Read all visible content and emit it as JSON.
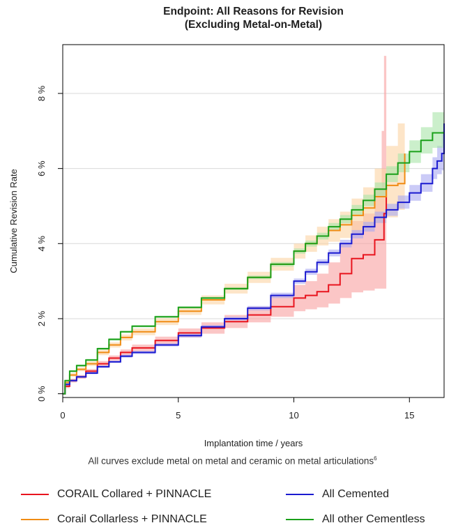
{
  "chart_data": {
    "type": "line",
    "title": "Endpoint: All Reasons for Revision",
    "subtitle": "(Excluding Metal-on-Metal)",
    "xlabel": "Implantation time / years",
    "ylabel": "Cumulative Revision Rate",
    "xlim": [
      0,
      16.5
    ],
    "ylim": [
      -0.1,
      9.3
    ],
    "x_ticks": [
      0,
      5,
      10,
      15
    ],
    "y_ticks": [
      0,
      2,
      4,
      6,
      8
    ],
    "y_tick_labels": [
      "0 %",
      "2 %",
      "4 %",
      "6 %",
      "8 %"
    ],
    "grid": "horizontal",
    "legend_placement": "bottom",
    "note": "All curves exclude metal on metal and ceramic on metal articulations",
    "note_superscript": "6",
    "series": [
      {
        "name": "CORAIL Collared + PINNACLE",
        "color": "#e8141e",
        "band_color": "#f8a0a0",
        "x": [
          0,
          0.1,
          0.3,
          0.6,
          1,
          1.5,
          2,
          2.5,
          3,
          4,
          5,
          6,
          7,
          8,
          9,
          10,
          10.5,
          11,
          11.5,
          12,
          12.5,
          13,
          13.5,
          13.8,
          13.9,
          14.0
        ],
        "y": [
          0,
          0.2,
          0.35,
          0.45,
          0.6,
          0.8,
          0.95,
          1.1,
          1.22,
          1.42,
          1.62,
          1.75,
          1.92,
          2.1,
          2.32,
          2.55,
          2.62,
          2.72,
          2.9,
          3.2,
          3.6,
          3.7,
          4.1,
          4.1,
          4.8,
          5.5
        ],
        "lower": [
          0,
          0.15,
          0.3,
          0.4,
          0.55,
          0.73,
          0.88,
          1.02,
          1.13,
          1.32,
          1.5,
          1.6,
          1.75,
          1.9,
          2.05,
          2.2,
          2.25,
          2.3,
          2.4,
          2.55,
          2.7,
          2.75,
          2.8,
          2.8,
          2.8,
          2.8
        ],
        "upper": [
          0,
          0.25,
          0.4,
          0.5,
          0.66,
          0.87,
          1.02,
          1.18,
          1.31,
          1.52,
          1.74,
          1.9,
          2.1,
          2.32,
          2.6,
          2.9,
          3.0,
          3.2,
          3.5,
          4.0,
          4.6,
          4.8,
          5.5,
          7.0,
          9.0,
          9.0
        ]
      },
      {
        "name": "Corail Collarless + PINNACLE",
        "color": "#f08c14",
        "band_color": "#fbd3a3",
        "x": [
          0,
          0.1,
          0.3,
          0.6,
          1,
          1.5,
          2,
          2.5,
          3,
          4,
          5,
          6,
          7,
          8,
          9,
          10,
          10.5,
          11,
          11.5,
          12,
          12.5,
          13,
          13.5,
          14,
          14.5,
          14.8
        ],
        "y": [
          0,
          0.3,
          0.5,
          0.65,
          0.8,
          1.1,
          1.3,
          1.5,
          1.65,
          1.92,
          2.2,
          2.5,
          2.8,
          3.1,
          3.45,
          3.8,
          4.0,
          4.2,
          4.35,
          4.5,
          4.75,
          4.95,
          5.25,
          5.55,
          5.6,
          6.4
        ],
        "lower": [
          0,
          0.26,
          0.45,
          0.6,
          0.74,
          1.03,
          1.23,
          1.42,
          1.56,
          1.83,
          2.1,
          2.38,
          2.67,
          2.95,
          3.28,
          3.6,
          3.78,
          3.95,
          4.05,
          4.15,
          4.3,
          4.4,
          4.55,
          4.7,
          4.9,
          5.2
        ],
        "upper": [
          0,
          0.34,
          0.55,
          0.7,
          0.86,
          1.17,
          1.37,
          1.58,
          1.74,
          2.01,
          2.3,
          2.62,
          2.93,
          3.25,
          3.62,
          4.0,
          4.22,
          4.45,
          4.65,
          4.85,
          5.2,
          5.5,
          6.0,
          6.6,
          7.2,
          9.1
        ]
      },
      {
        "name": "All Cemented",
        "color": "#1a1ad0",
        "band_color": "#a8a8f2",
        "x": [
          0,
          0.1,
          0.3,
          0.6,
          1,
          1.5,
          2,
          2.5,
          3,
          4,
          5,
          6,
          7,
          8,
          9,
          10,
          10.5,
          11,
          11.5,
          12,
          12.5,
          13,
          13.5,
          14,
          14.5,
          15,
          15.5,
          16,
          16.2,
          16.4,
          16.5
        ],
        "y": [
          0,
          0.25,
          0.35,
          0.45,
          0.55,
          0.72,
          0.85,
          1.0,
          1.1,
          1.3,
          1.55,
          1.78,
          2.0,
          2.28,
          2.62,
          3.0,
          3.25,
          3.5,
          3.75,
          4.0,
          4.25,
          4.45,
          4.7,
          4.9,
          5.1,
          5.35,
          5.6,
          6.0,
          6.2,
          6.4,
          7.2
        ],
        "lower": [
          0,
          0.22,
          0.32,
          0.42,
          0.52,
          0.69,
          0.82,
          0.96,
          1.06,
          1.26,
          1.5,
          1.73,
          1.95,
          2.22,
          2.55,
          2.93,
          3.17,
          3.42,
          3.66,
          3.9,
          4.14,
          4.32,
          4.55,
          4.74,
          4.93,
          5.14,
          5.38,
          5.72,
          5.85,
          5.95,
          6.0
        ],
        "upper": [
          0,
          0.28,
          0.38,
          0.48,
          0.58,
          0.75,
          0.88,
          1.04,
          1.14,
          1.34,
          1.6,
          1.83,
          2.05,
          2.34,
          2.69,
          3.07,
          3.33,
          3.58,
          3.84,
          4.1,
          4.36,
          4.58,
          4.85,
          5.06,
          5.28,
          5.56,
          5.85,
          6.3,
          6.6,
          7.0,
          9.0
        ]
      },
      {
        "name": "All other Cementless",
        "color": "#1aa01a",
        "band_color": "#a8e4a8",
        "x": [
          0,
          0.1,
          0.3,
          0.6,
          1,
          1.5,
          2,
          2.5,
          3,
          4,
          5,
          6,
          7,
          8,
          9,
          10,
          10.5,
          11,
          11.5,
          12,
          12.5,
          13,
          13.5,
          14,
          14.5,
          15,
          15.5,
          16,
          16.5
        ],
        "y": [
          0,
          0.35,
          0.6,
          0.75,
          0.9,
          1.2,
          1.45,
          1.65,
          1.8,
          2.05,
          2.3,
          2.55,
          2.8,
          3.1,
          3.45,
          3.8,
          4.0,
          4.2,
          4.45,
          4.65,
          4.9,
          5.15,
          5.45,
          5.85,
          6.15,
          6.45,
          6.75,
          6.95,
          6.95
        ],
        "lower": [
          0,
          0.33,
          0.57,
          0.72,
          0.87,
          1.17,
          1.42,
          1.62,
          1.77,
          2.02,
          2.27,
          2.52,
          2.76,
          3.05,
          3.39,
          3.73,
          3.92,
          4.11,
          4.35,
          4.54,
          4.77,
          5.0,
          5.27,
          5.64,
          5.9,
          6.15,
          6.4,
          6.55,
          6.5
        ],
        "upper": [
          0,
          0.37,
          0.63,
          0.78,
          0.93,
          1.23,
          1.48,
          1.68,
          1.83,
          2.08,
          2.33,
          2.58,
          2.84,
          3.15,
          3.51,
          3.87,
          4.08,
          4.29,
          4.55,
          4.76,
          5.03,
          5.3,
          5.63,
          6.06,
          6.4,
          6.75,
          7.1,
          7.5,
          8.3
        ]
      }
    ]
  }
}
